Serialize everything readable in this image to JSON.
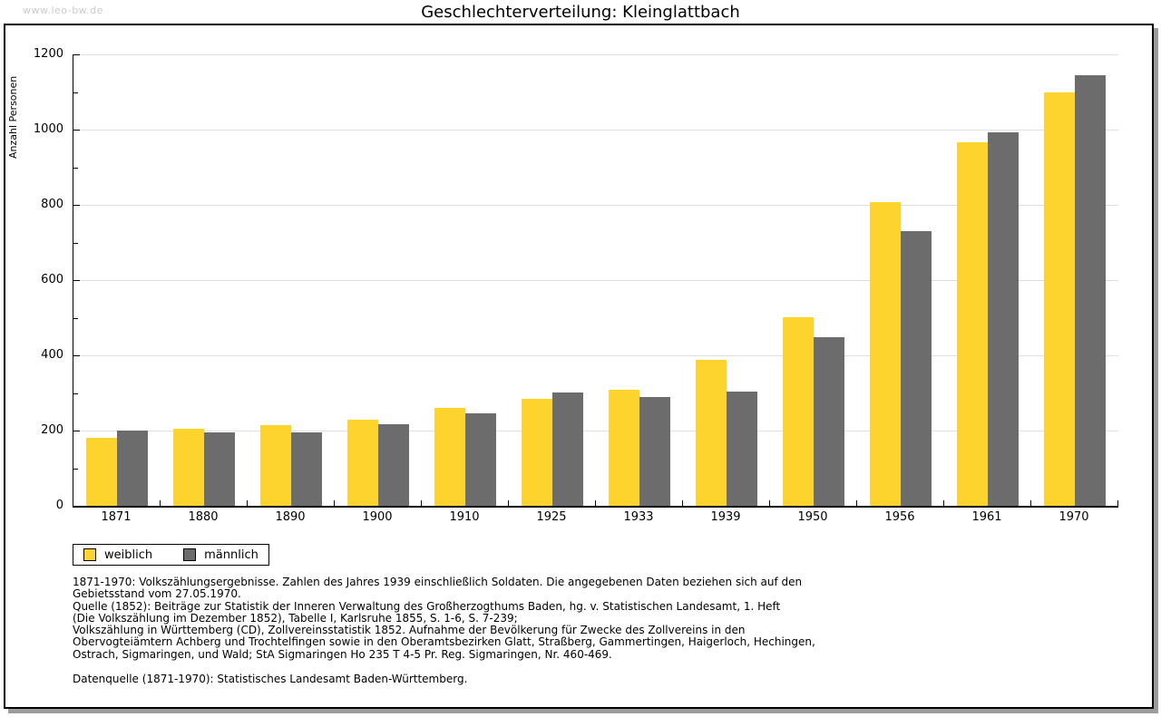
{
  "watermark": "www.leo-bw.de",
  "title": "Geschlechterverteilung: Kleinglattbach",
  "chart_data": {
    "type": "bar",
    "title": "Geschlechterverteilung: Kleinglattbach",
    "categories": [
      "1871",
      "1880",
      "1890",
      "1900",
      "1910",
      "1925",
      "1933",
      "1939",
      "1950",
      "1956",
      "1961",
      "1970"
    ],
    "series": [
      {
        "name": "weiblich",
        "color": "#FCD42D",
        "values": [
          180,
          204,
          215,
          228,
          261,
          284,
          309,
          387,
          501,
          808,
          967,
          1098
        ]
      },
      {
        "name": "männlich",
        "color": "#6C6C6C",
        "values": [
          199,
          196,
          196,
          218,
          245,
          302,
          288,
          303,
          449,
          731,
          992,
          1144
        ]
      }
    ],
    "xlabel": "",
    "ylabel": "Anzahl Personen",
    "ylim": [
      0,
      1200
    ],
    "yticks": [
      0,
      200,
      400,
      600,
      800,
      1000,
      1200
    ],
    "minor_ytick_step": 100,
    "grid": "horizontal-major",
    "gridline_color": "#DFDFDF",
    "legend_position": "bottom-left"
  },
  "footnotes": {
    "lines": [
      "1871-1970: Volkszählungsergebnisse. Zahlen des Jahres 1939 einschließlich Soldaten. Die angegebenen Daten beziehen sich auf den",
      "Gebietsstand vom 27.05.1970.",
      "Quelle (1852): Beiträge zur Statistik der Inneren Verwaltung des Großherzogthums Baden, hg. v. Statistischen Landesamt, 1. Heft",
      "(Die Volkszählung im Dezember 1852), Tabelle I, Karlsruhe 1855, S. 1-6, S. 7-239;",
      "Volkszählung in Württemberg (CD), Zollvereinsstatistik 1852. Aufnahme der Bevölkerung für Zwecke des Zollvereins in den",
      "Obervogteiämtern Achberg und Trochtelfingen sowie in den Oberamtsbezirken Glatt, Straßberg, Gammertingen, Haigerloch, Hechingen,",
      "Ostrach, Sigmaringen, und Wald; StA Sigmaringen Ho 235 T 4-5 Pr. Reg. Sigmaringen, Nr. 460-469."
    ],
    "datasource": "Datenquelle (1871-1970): Statistisches Landesamt Baden-Württemberg."
  }
}
